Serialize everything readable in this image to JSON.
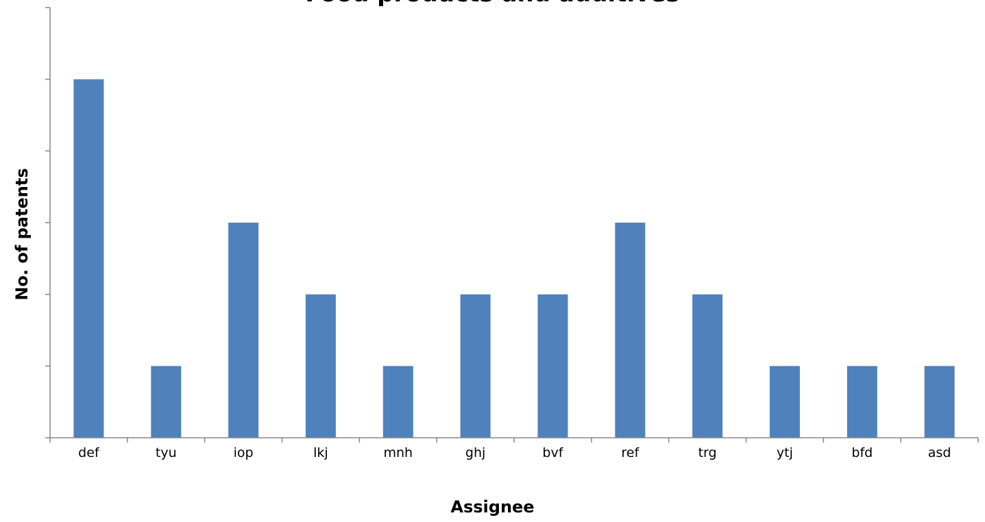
{
  "chart_data": {
    "type": "bar",
    "title": "Food products and additives",
    "xlabel": "Assignee",
    "ylabel": "No. of patents",
    "categories": [
      "def",
      "tyu",
      "iop",
      "lkj",
      "mnh",
      "ghj",
      "bvf",
      "ref",
      "trg",
      "ytj",
      "bfd",
      "asd"
    ],
    "values": [
      5,
      1,
      3,
      2,
      1,
      2,
      2,
      3,
      2,
      1,
      1,
      1
    ],
    "ylim": [
      0,
      6
    ],
    "grid": false,
    "legend": "none",
    "bar_color": "#4F81BD",
    "axis_color": "#868686"
  }
}
